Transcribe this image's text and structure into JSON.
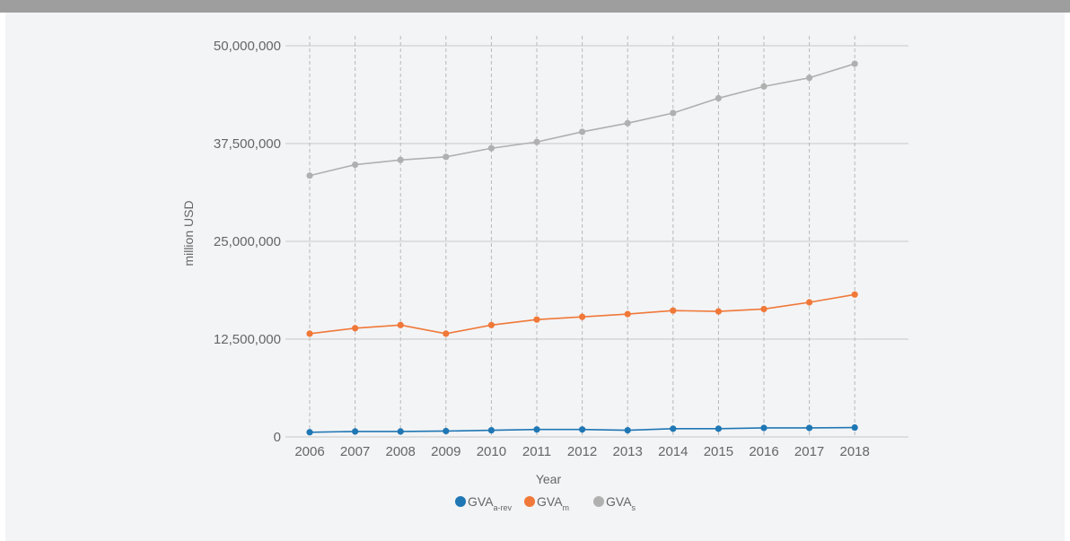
{
  "chart_data": {
    "type": "line",
    "xlabel": "Year",
    "ylabel": "million USD",
    "x": [
      "2006",
      "2007",
      "2008",
      "2009",
      "2010",
      "2011",
      "2012",
      "2013",
      "2014",
      "2015",
      "2016",
      "2017",
      "2018"
    ],
    "ylim": [
      0,
      50000000
    ],
    "yticks": [
      0,
      12500000,
      25000000,
      37500000,
      50000000
    ],
    "ytick_labels": [
      "0",
      "12,500,000",
      "25,000,000",
      "37,500,000",
      "50,000,000"
    ],
    "grid": true,
    "legend": "bottom-center",
    "series": [
      {
        "name": "GVA",
        "subscript": "a-rev",
        "color": "#1f77b4",
        "values": [
          600000,
          700000,
          700000,
          750000,
          850000,
          950000,
          950000,
          850000,
          1050000,
          1050000,
          1150000,
          1150000,
          1200000
        ]
      },
      {
        "name": "GVA",
        "subscript": "m",
        "color": "#f07838",
        "values": [
          13200000,
          13900000,
          14300000,
          13200000,
          14300000,
          15000000,
          15350000,
          15700000,
          16150000,
          16050000,
          16350000,
          17200000,
          18200000
        ]
      },
      {
        "name": "GVA",
        "subscript": "s",
        "color": "#b0b0b0",
        "values": [
          33400000,
          34800000,
          35400000,
          35800000,
          36900000,
          37700000,
          39000000,
          40100000,
          41400000,
          43300000,
          44800000,
          45900000,
          47700000
        ]
      }
    ]
  }
}
